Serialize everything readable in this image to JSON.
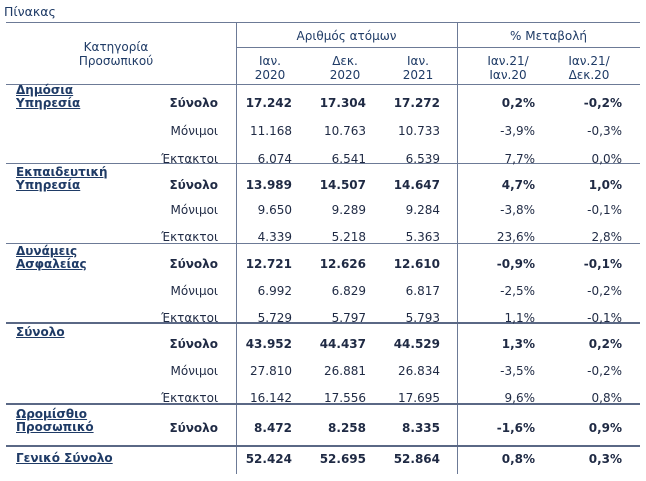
{
  "caption": "Πίνακας",
  "header": {
    "category": "Κατηγορία\nΠροσωπικού",
    "group_people": "Αριθμός ατόμων",
    "group_change": "% Μεταβολή",
    "col1": "Ιαν.\n2020",
    "col2": "Δεκ.\n2020",
    "col3": "Ιαν.\n2021",
    "col4": "Ιαν.21/\nΙαν.20",
    "col5": "Ιαν.21/\nΔεκ.20"
  },
  "groups": [
    {
      "category": "Δημόσια\nΥπηρεσία",
      "rows": [
        {
          "label": "Σύνολο",
          "v": [
            "17.242",
            "17.304",
            "17.272",
            "0,2%",
            "-0,2%"
          ]
        },
        {
          "label": "Μόνιμοι",
          "v": [
            "11.168",
            "10.763",
            "10.733",
            "-3,9%",
            "-0,3%"
          ]
        },
        {
          "label": "Έκτακτοι",
          "v": [
            "6.074",
            "6.541",
            "6.539",
            "7,7%",
            "0,0%"
          ]
        }
      ]
    },
    {
      "category": "Εκπαιδευτική\nΥπηρεσία",
      "rows": [
        {
          "label": "Σύνολο",
          "v": [
            "13.989",
            "14.507",
            "14.647",
            "4,7%",
            "1,0%"
          ]
        },
        {
          "label": "Μόνιμοι",
          "v": [
            "9.650",
            "9.289",
            "9.284",
            "-3,8%",
            "-0,1%"
          ]
        },
        {
          "label": "Έκτακτοι",
          "v": [
            "4.339",
            "5.218",
            "5.363",
            "23,6%",
            "2,8%"
          ]
        }
      ]
    },
    {
      "category": "Δυνάμεις\nΑσφαλείας",
      "rows": [
        {
          "label": "Σύνολο",
          "v": [
            "12.721",
            "12.626",
            "12.610",
            "-0,9%",
            "-0,1%"
          ]
        },
        {
          "label": "Μόνιμοι",
          "v": [
            "6.992",
            "6.829",
            "6.817",
            "-2,5%",
            "-0,2%"
          ]
        },
        {
          "label": "Έκτακτοι",
          "v": [
            "5.729",
            "5.797",
            "5.793",
            "1,1%",
            "-0,1%"
          ]
        }
      ]
    },
    {
      "category": "Σύνολο",
      "rows": [
        {
          "label": "Σύνολο",
          "v": [
            "43.952",
            "44.437",
            "44.529",
            "1,3%",
            "0,2%"
          ]
        },
        {
          "label": "Μόνιμοι",
          "v": [
            "27.810",
            "26.881",
            "26.834",
            "-3,5%",
            "-0,2%"
          ]
        },
        {
          "label": "Έκτακτοι",
          "v": [
            "16.142",
            "17.556",
            "17.695",
            "9,6%",
            "0,8%"
          ]
        }
      ]
    },
    {
      "category": "Ωρομίσθιο\nΠροσωπικό",
      "rows": [
        {
          "label": "Σύνολο",
          "v": [
            "8.472",
            "8.258",
            "8.335",
            "-1,6%",
            "0,9%"
          ]
        }
      ]
    }
  ],
  "grand_total": {
    "category": "Γενικό Σύνολο",
    "v": [
      "52.424",
      "52.695",
      "52.864",
      "0,8%",
      "0,3%"
    ]
  }
}
